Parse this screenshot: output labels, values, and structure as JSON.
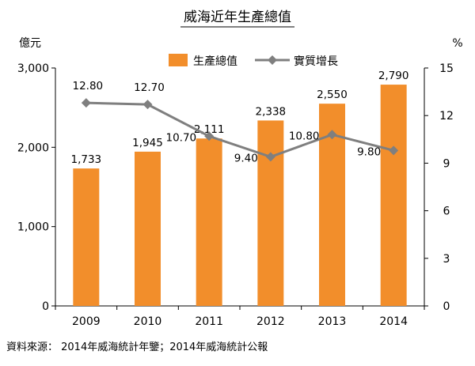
{
  "chart_data": {
    "type": "bar",
    "title": "威海近年生產總值",
    "categories": [
      "2009",
      "2010",
      "2011",
      "2012",
      "2013",
      "2014"
    ],
    "y_left": {
      "unit": "億元",
      "ylim": [
        0,
        3000
      ],
      "ticks": [
        0,
        1000,
        2000,
        3000
      ],
      "tick_labels": [
        "0",
        "1,000",
        "2,000",
        "3,000"
      ]
    },
    "y_right": {
      "unit": "%",
      "ylim": [
        0,
        15
      ],
      "ticks": [
        0,
        3,
        6,
        9,
        12,
        15
      ],
      "tick_labels": [
        "0",
        "3",
        "6",
        "9",
        "12",
        "15"
      ]
    },
    "series": [
      {
        "name": "生產總值",
        "kind": "bar",
        "axis": "left",
        "color": "#F28E2B",
        "values": [
          1733,
          1945,
          2111,
          2338,
          2550,
          2790
        ],
        "labels": [
          "1,733",
          "1,945",
          "2,111",
          "2,338",
          "2,550",
          "2,790"
        ]
      },
      {
        "name": "實質增長",
        "kind": "line",
        "axis": "right",
        "color": "#7F7F7F",
        "values": [
          12.8,
          12.7,
          10.7,
          9.4,
          10.8,
          9.8
        ],
        "labels": [
          "12.80",
          "12.70",
          "10.70",
          "9.40",
          "10.80",
          "9.80"
        ]
      }
    ],
    "legend": "top-center",
    "grid": false,
    "source": "資料來源： 2014年威海統計年鑒；2014年威海統計公報"
  }
}
